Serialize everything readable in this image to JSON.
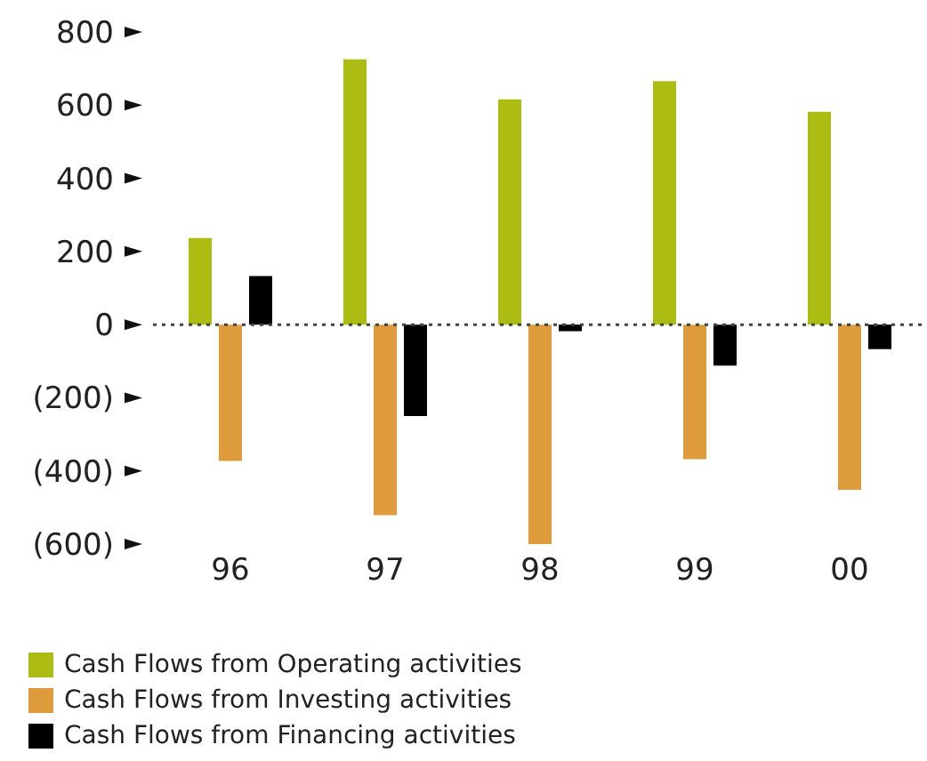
{
  "chart_data": {
    "type": "bar",
    "categories": [
      "96",
      "97",
      "98",
      "99",
      "00"
    ],
    "series": [
      {
        "name": "Cash Flows from Operating activities",
        "color": "#adbc12",
        "values": [
          237,
          725,
          616,
          666,
          582
        ]
      },
      {
        "name": "Cash Flows from Investing activities",
        "color": "#dd9b3b",
        "values": [
          -373,
          -521,
          -600,
          -368,
          -452
        ]
      },
      {
        "name": "Cash Flows from Financing activities",
        "color": "#000000",
        "values": [
          133,
          -250,
          -18,
          -112,
          -67
        ]
      }
    ],
    "ylim": [
      -600,
      800
    ],
    "yticks": [
      {
        "value": -600,
        "label": "(600)"
      },
      {
        "value": -400,
        "label": "(400)"
      },
      {
        "value": -200,
        "label": "(200)"
      },
      0,
      200,
      400,
      600,
      800
    ],
    "ref_lines": [
      {
        "axis": "y",
        "value": 0,
        "line_style": "dotted",
        "color": "#444444"
      }
    ],
    "grid": false,
    "legend": "bottom left"
  }
}
